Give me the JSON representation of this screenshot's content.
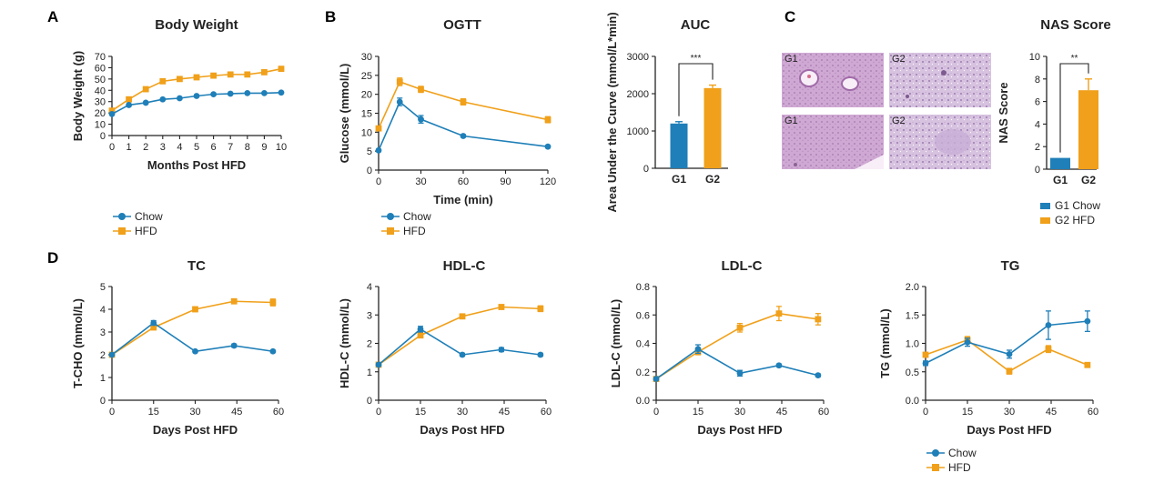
{
  "colors": {
    "chow": "#1f7fb8",
    "hfd": "#f0a01a",
    "axis": "#222222",
    "tissue": "#c9a6cf"
  },
  "panel_letters": {
    "a": "A",
    "b": "B",
    "c": "C",
    "d": "D"
  },
  "histology": {
    "labels": [
      "G1",
      "G2",
      "G1",
      "G2"
    ]
  },
  "legends": {
    "a": [
      "Chow",
      "HFD"
    ],
    "b": [
      "Chow",
      "HFD"
    ],
    "c": [
      "G1 Chow",
      "G2 HFD"
    ],
    "tg": [
      "Chow",
      "HFD"
    ]
  },
  "chart_data": [
    {
      "id": "body_weight",
      "type": "line",
      "title": "Body Weight",
      "xlabel": "Months Post HFD",
      "ylabel": "Body Weight (g)",
      "xlim": [
        0,
        10
      ],
      "ylim": [
        0,
        70
      ],
      "xticks": [
        0,
        1,
        2,
        3,
        4,
        5,
        6,
        7,
        8,
        9,
        10
      ],
      "yticks": [
        0,
        10,
        20,
        30,
        40,
        50,
        60,
        70
      ],
      "x": [
        0,
        1,
        2,
        3,
        4,
        5,
        6,
        7,
        8,
        9,
        10
      ],
      "series": [
        {
          "name": "Chow",
          "values": [
            19,
            27,
            29,
            32,
            33,
            35,
            36.5,
            37,
            37.5,
            37.5,
            38
          ]
        },
        {
          "name": "HFD",
          "values": [
            22,
            32,
            41,
            48,
            50,
            51.5,
            53,
            54,
            54,
            56,
            59
          ]
        }
      ]
    },
    {
      "id": "ogtt",
      "type": "line",
      "title": "OGTT",
      "xlabel": "Time (min)",
      "ylabel": "Glucose (mmol/L)",
      "xlim": [
        0,
        120
      ],
      "ylim": [
        0,
        30
      ],
      "xticks": [
        0,
        30,
        60,
        90,
        120
      ],
      "yticks": [
        0,
        5,
        10,
        15,
        20,
        25,
        30
      ],
      "x": [
        0,
        15,
        30,
        60,
        120
      ],
      "series": [
        {
          "name": "Chow",
          "values": [
            5.2,
            18,
            13.4,
            9,
            6.2
          ],
          "errors": [
            0.3,
            1.0,
            1.0,
            0.3,
            0.3
          ]
        },
        {
          "name": "HFD",
          "values": [
            11,
            23.3,
            21.3,
            18,
            13.3
          ],
          "errors": [
            0.5,
            1.0,
            0.8,
            0.8,
            0.8
          ]
        }
      ]
    },
    {
      "id": "auc",
      "type": "bar",
      "title": "AUC",
      "ylabel": "Area Under the Curve (mmol/L*min)",
      "categories": [
        "G1",
        "G2"
      ],
      "values": [
        1200,
        2150
      ],
      "errors": [
        50,
        80
      ],
      "ylim": [
        0,
        3000
      ],
      "yticks": [
        0,
        1000,
        2000,
        3000
      ],
      "significance": "***"
    },
    {
      "id": "nas",
      "type": "bar",
      "title": "NAS Score",
      "ylabel": "NAS Score",
      "categories": [
        "G1",
        "G2"
      ],
      "values": [
        1,
        7
      ],
      "errors": [
        0,
        1
      ],
      "ylim": [
        0,
        10
      ],
      "yticks": [
        0,
        2,
        4,
        6,
        8,
        10
      ],
      "significance": "**"
    },
    {
      "id": "tc",
      "type": "line",
      "title": "TC",
      "xlabel": "Days Post HFD",
      "ylabel": "T-CHO (mmol/L)",
      "xlim": [
        0,
        60
      ],
      "ylim": [
        0,
        5
      ],
      "xticks": [
        0,
        15,
        30,
        45,
        60
      ],
      "yticks": [
        0,
        1,
        2,
        3,
        4,
        5
      ],
      "x": [
        0,
        15,
        30,
        44,
        58
      ],
      "series": [
        {
          "name": "Chow",
          "values": [
            2.0,
            3.4,
            2.15,
            2.4,
            2.15
          ],
          "errors": [
            0.05,
            0.1,
            0.05,
            0.07,
            0.05
          ]
        },
        {
          "name": "HFD",
          "values": [
            2.0,
            3.2,
            4.0,
            4.35,
            4.3
          ],
          "errors": [
            0.05,
            0.1,
            0.1,
            0.1,
            0.15
          ]
        }
      ]
    },
    {
      "id": "hdl",
      "type": "line",
      "title": "HDL-C",
      "xlabel": "Days Post HFD",
      "ylabel": "HDL-C (mmol/L)",
      "xlim": [
        0,
        60
      ],
      "ylim": [
        0,
        4
      ],
      "xticks": [
        0,
        15,
        30,
        45,
        60
      ],
      "yticks": [
        0,
        1,
        2,
        3,
        4
      ],
      "x": [
        0,
        15,
        30,
        44,
        58
      ],
      "series": [
        {
          "name": "Chow",
          "values": [
            1.25,
            2.5,
            1.6,
            1.78,
            1.6
          ],
          "errors": [
            0.05,
            0.1,
            0.05,
            0.07,
            0.05
          ]
        },
        {
          "name": "HFD",
          "values": [
            1.25,
            2.28,
            2.95,
            3.28,
            3.22
          ],
          "errors": [
            0.05,
            0.08,
            0.07,
            0.06,
            0.1
          ]
        }
      ]
    },
    {
      "id": "ldl",
      "type": "line",
      "title": "LDL-C",
      "xlabel": "Days Post HFD",
      "ylabel": "LDL-C (mmol/L)",
      "xlim": [
        0,
        60
      ],
      "ylim": [
        0,
        0.8
      ],
      "xticks": [
        0,
        15,
        30,
        45,
        60
      ],
      "yticks": [
        0.0,
        0.2,
        0.4,
        0.6,
        0.8
      ],
      "ytick_decimals": 1,
      "x": [
        0,
        15,
        30,
        44,
        58
      ],
      "series": [
        {
          "name": "Chow",
          "values": [
            0.15,
            0.36,
            0.19,
            0.245,
            0.175
          ],
          "errors": [
            0.01,
            0.03,
            0.02,
            0.01,
            0.01
          ]
        },
        {
          "name": "HFD",
          "values": [
            0.15,
            0.34,
            0.51,
            0.61,
            0.57
          ],
          "errors": [
            0.01,
            0.02,
            0.03,
            0.05,
            0.04
          ]
        }
      ]
    },
    {
      "id": "tg",
      "type": "line",
      "title": "TG",
      "xlabel": "Days Post HFD",
      "ylabel": "TG (mmol/L)",
      "xlim": [
        0,
        60
      ],
      "ylim": [
        0,
        2.0
      ],
      "xticks": [
        0,
        15,
        30,
        45,
        60
      ],
      "yticks": [
        0.0,
        0.5,
        1.0,
        1.5,
        2.0
      ],
      "ytick_decimals": 1,
      "x": [
        0,
        15,
        30,
        44,
        58
      ],
      "series": [
        {
          "name": "Chow",
          "values": [
            0.65,
            1.02,
            0.81,
            1.32,
            1.39
          ],
          "errors": [
            0.04,
            0.07,
            0.07,
            0.25,
            0.18
          ]
        },
        {
          "name": "HFD",
          "values": [
            0.8,
            1.06,
            0.51,
            0.9,
            0.62
          ],
          "errors": [
            0.04,
            0.06,
            0.05,
            0.06,
            0.04
          ]
        }
      ]
    }
  ]
}
